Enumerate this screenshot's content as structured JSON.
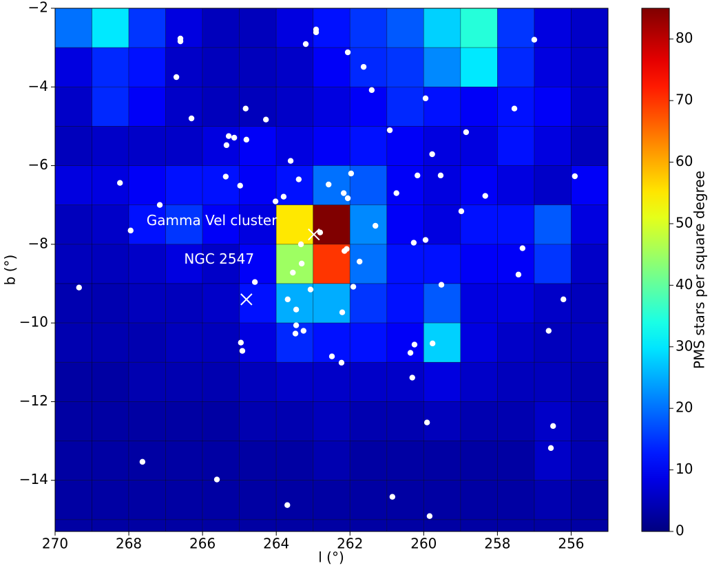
{
  "chart_data": {
    "type": "heatmap",
    "xlabel": "l (°)",
    "ylabel": "b (°)",
    "xlim": [
      270,
      255
    ],
    "ylim": [
      -15.3,
      -2
    ],
    "xticks": [
      270,
      268,
      266,
      264,
      262,
      260,
      258,
      256
    ],
    "yticks": [
      {
        "value": -14,
        "label": "−14"
      },
      {
        "value": -12,
        "label": "−12"
      },
      {
        "value": -10,
        "label": "−10"
      },
      {
        "value": -8,
        "label": "−8"
      },
      {
        "value": -6,
        "label": "−6"
      },
      {
        "value": -4,
        "label": "−4"
      },
      {
        "value": -2,
        "label": "−2"
      }
    ],
    "colormap": "jet",
    "heatmap": {
      "xbins": [
        270,
        269,
        268,
        267,
        266,
        265,
        264,
        263,
        262,
        261,
        260,
        259,
        258,
        257,
        256,
        255
      ],
      "ybins": [
        -2,
        -3,
        -4,
        -5,
        -6,
        -7,
        -8,
        -9,
        -10,
        -11,
        -12,
        -13,
        -14,
        -15,
        -15.3
      ],
      "values": [
        [
          20,
          30,
          15,
          8,
          5,
          5,
          8,
          12,
          15,
          18,
          28,
          35,
          15,
          8,
          6
        ],
        [
          8,
          14,
          12,
          6,
          5,
          5,
          6,
          10,
          14,
          15,
          22,
          30,
          14,
          8,
          6
        ],
        [
          6,
          14,
          10,
          6,
          5,
          5,
          6,
          8,
          10,
          14,
          12,
          10,
          12,
          10,
          6
        ],
        [
          5,
          6,
          6,
          6,
          8,
          10,
          8,
          10,
          12,
          10,
          8,
          8,
          12,
          8,
          5
        ],
        [
          8,
          8,
          10,
          12,
          12,
          10,
          12,
          20,
          18,
          10,
          8,
          10,
          8,
          6,
          10
        ],
        [
          5,
          6,
          12,
          15,
          10,
          8,
          55,
          85,
          22,
          10,
          8,
          12,
          12,
          18,
          8
        ],
        [
          5,
          5,
          6,
          8,
          6,
          10,
          45,
          70,
          20,
          12,
          12,
          10,
          10,
          15,
          6
        ],
        [
          4,
          4,
          5,
          5,
          6,
          12,
          25,
          25,
          15,
          12,
          18,
          8,
          8,
          6,
          5
        ],
        [
          4,
          4,
          4,
          5,
          5,
          8,
          14,
          12,
          12,
          10,
          28,
          8,
          6,
          5,
          5
        ],
        [
          3,
          3,
          4,
          4,
          4,
          5,
          6,
          6,
          6,
          6,
          8,
          6,
          5,
          5,
          4
        ],
        [
          3,
          3,
          3,
          3,
          3,
          4,
          4,
          5,
          4,
          4,
          5,
          4,
          4,
          6,
          4
        ],
        [
          3,
          3,
          3,
          3,
          3,
          3,
          3,
          4,
          3,
          3,
          3,
          3,
          3,
          6,
          4
        ],
        [
          3,
          3,
          3,
          3,
          3,
          3,
          3,
          3,
          3,
          3,
          3,
          3,
          3,
          4,
          3
        ],
        [
          3,
          3,
          3,
          3,
          3,
          3,
          3,
          3,
          3,
          3,
          3,
          3,
          3,
          3,
          3
        ]
      ]
    },
    "colorbar": {
      "label": "PMS stars per square degree",
      "lim": [
        0,
        85
      ],
      "ticks": [
        0,
        10,
        20,
        30,
        40,
        50,
        60,
        70,
        80
      ]
    },
    "points": {
      "color": "#ffffff",
      "x": [
        266.6,
        266.6,
        262.92,
        262.92,
        263.2,
        262.06,
        261.63,
        261.41,
        259.95,
        257.54,
        257.0,
        266.71,
        266.3,
        264.83,
        264.28,
        265.29,
        265.14,
        265.35,
        264.81,
        263.61,
        260.92,
        258.85,
        259.77,
        263.39,
        265.37,
        264.98,
        268.24,
        261.97,
        262.58,
        260.17,
        259.54,
        255.9,
        260.74,
        262.17,
        262.06,
        263.8,
        264.02,
        267.16,
        258.33,
        258.98,
        261.31,
        267.95,
        262.81,
        263.33,
        262.15,
        262.09,
        260.27,
        259.95,
        257.32,
        263.31,
        261.74,
        263.55,
        264.58,
        257.43,
        269.35,
        261.91,
        259.52,
        263.69,
        263.07,
        256.21,
        263.46,
        262.21,
        263.46,
        263.26,
        263.48,
        256.61,
        264.96,
        264.92,
        260.25,
        259.76,
        260.36,
        262.49,
        262.23,
        260.31,
        259.91,
        256.49,
        256.55,
        267.63,
        265.61,
        263.7,
        260.85,
        259.84
      ],
      "y": [
        -2.77,
        -2.84,
        -2.54,
        -2.61,
        -2.91,
        -3.12,
        -3.49,
        -4.08,
        -4.29,
        -4.55,
        -2.8,
        -3.75,
        -4.8,
        -4.55,
        -4.83,
        -5.25,
        -5.29,
        -5.48,
        -5.34,
        -5.88,
        -5.1,
        -5.15,
        -5.71,
        -6.35,
        -6.28,
        -6.51,
        -6.44,
        -6.2,
        -6.48,
        -6.25,
        -6.25,
        -6.27,
        -6.7,
        -6.7,
        -6.83,
        -6.79,
        -6.91,
        -7.0,
        -6.77,
        -7.16,
        -7.53,
        -7.65,
        -7.7,
        -8.0,
        -8.17,
        -8.12,
        -7.96,
        -7.89,
        -8.1,
        -8.49,
        -8.44,
        -8.72,
        -8.96,
        -8.77,
        -9.1,
        -9.08,
        -9.03,
        -9.4,
        -9.15,
        -9.4,
        -9.66,
        -9.73,
        -10.06,
        -10.2,
        -10.27,
        -10.2,
        -10.5,
        -10.71,
        -10.55,
        -10.52,
        -10.76,
        -10.85,
        -11.01,
        -11.39,
        -12.53,
        -12.62,
        -13.18,
        -13.53,
        -13.98,
        -14.63,
        -14.42,
        -14.91
      ]
    },
    "annotations": [
      {
        "text": "Gamma Vel cluster",
        "x": 267.52,
        "y": -7.42,
        "marker_x": 262.98,
        "marker_y": -7.75
      },
      {
        "text": "NGC 2547",
        "x": 266.5,
        "y": -8.4,
        "marker_x": 264.81,
        "marker_y": -9.4
      }
    ]
  }
}
